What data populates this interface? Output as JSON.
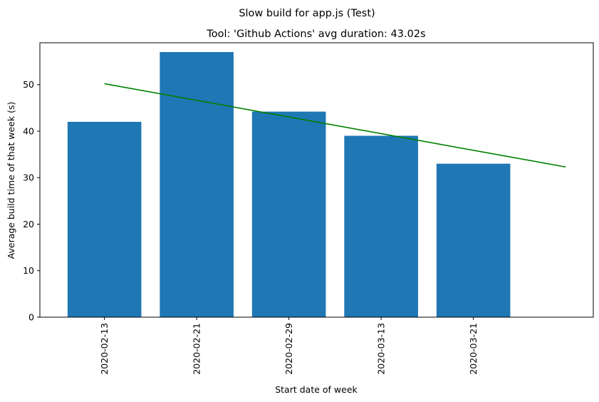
{
  "chart_data": {
    "type": "bar",
    "suptitle": "Slow build for app.js (Test)",
    "title": "Tool: 'Github Actions' avg duration: 43.02s",
    "xlabel": "Start date of week",
    "ylabel": "Average build time of that week (s)",
    "categories": [
      "2020-02-13",
      "2020-02-21",
      "2020-02-29",
      "2020-03-13",
      "2020-03-21"
    ],
    "values": [
      42.0,
      57.0,
      44.2,
      39.0,
      33.0
    ],
    "ylim": [
      0,
      59
    ],
    "yticks": [
      0,
      10,
      20,
      30,
      40,
      50
    ],
    "trend_line": {
      "x_start": 0,
      "y_start": 50.2,
      "x_end": 5,
      "y_end": 32.3
    },
    "xlim": [
      -0.7,
      5.3
    ],
    "colors": {
      "bar": "#1f77b4",
      "trend": "#008000",
      "axis": "#000000"
    },
    "grid": false,
    "legend": "none"
  }
}
